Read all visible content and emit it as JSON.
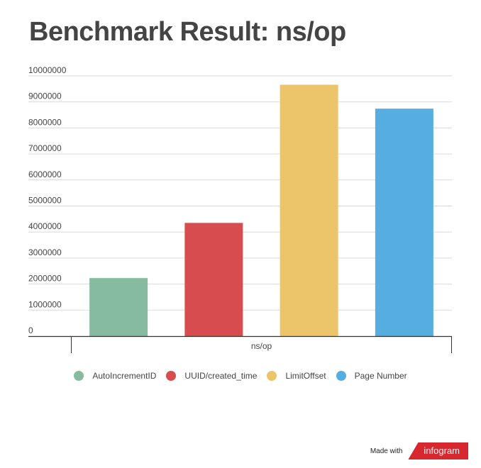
{
  "chart_data": {
    "type": "bar",
    "title": "Benchmark Result: ns/op",
    "xlabel": "ns/op",
    "ylabel": "",
    "categories": [
      "ns/op"
    ],
    "ylim": [
      0,
      10000000
    ],
    "yticks": [
      0,
      1000000,
      2000000,
      3000000,
      4000000,
      5000000,
      6000000,
      7000000,
      8000000,
      9000000,
      10000000
    ],
    "grid": true,
    "legend_position": "bottom",
    "series": [
      {
        "name": "AutoIncrementID",
        "values": [
          2230000
        ],
        "color": "#86bba0"
      },
      {
        "name": "UUID/created_time",
        "values": [
          4350000
        ],
        "color": "#d64c4f"
      },
      {
        "name": "LimitOffset",
        "values": [
          9660000
        ],
        "color": "#ecc46a"
      },
      {
        "name": "Page Number",
        "values": [
          8740000
        ],
        "color": "#55ade0"
      }
    ]
  },
  "footer": {
    "made_with": "Made with",
    "brand": "infogram"
  }
}
